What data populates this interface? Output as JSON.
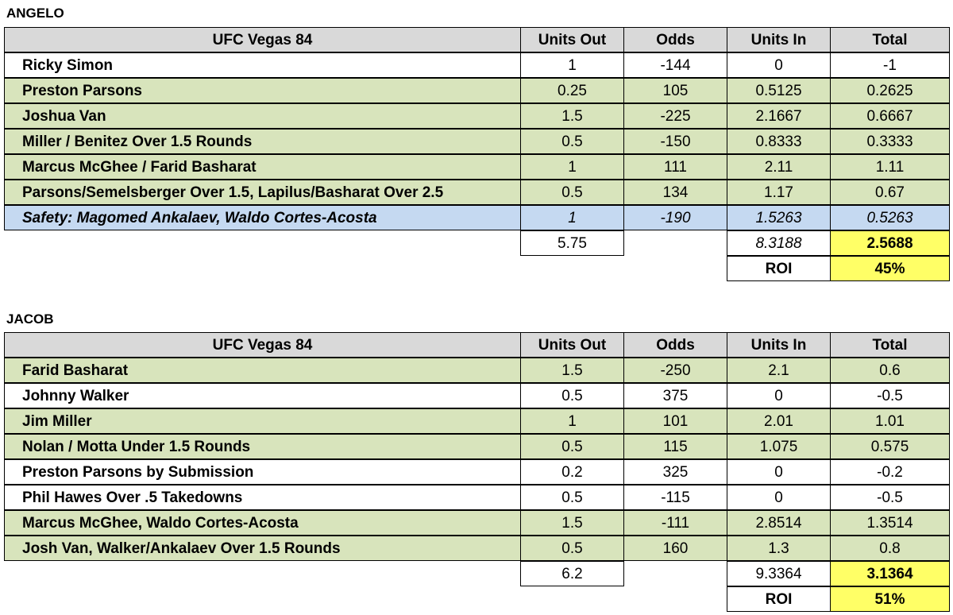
{
  "tables": [
    {
      "name": "ANGELO",
      "headers": [
        "UFC Vegas 84",
        "Units Out",
        "Odds",
        "Units In",
        "Total"
      ],
      "rows": [
        {
          "bet": "Ricky Simon",
          "units_out": "1",
          "odds": "-144",
          "units_in": "0",
          "total": "-1",
          "shade": "white"
        },
        {
          "bet": "Preston Parsons",
          "units_out": "0.25",
          "odds": "105",
          "units_in": "0.5125",
          "total": "0.2625",
          "shade": "green"
        },
        {
          "bet": "Joshua Van",
          "units_out": "1.5",
          "odds": "-225",
          "units_in": "2.1667",
          "total": "0.6667",
          "shade": "green"
        },
        {
          "bet": "Miller / Benitez Over 1.5 Rounds",
          "units_out": "0.5",
          "odds": "-150",
          "units_in": "0.8333",
          "total": "0.3333",
          "shade": "green"
        },
        {
          "bet": "Marcus McGhee / Farid Basharat",
          "units_out": "1",
          "odds": "111",
          "units_in": "2.11",
          "total": "1.11",
          "shade": "green"
        },
        {
          "bet": "Parsons/Semelsberger Over 1.5, Lapilus/Basharat Over 2.5",
          "units_out": "0.5",
          "odds": "134",
          "units_in": "1.17",
          "total": "0.67",
          "shade": "green"
        },
        {
          "bet": "Safety: Magomed Ankalaev, Waldo Cortes-Acosta",
          "units_out": "1",
          "odds": "-190",
          "units_in": "1.5263",
          "total": "0.5263",
          "shade": "blue"
        }
      ],
      "sum_units_out": "5.75",
      "sum_units_in": "8.3188",
      "sum_total": "2.5688",
      "roi_label": "ROI",
      "roi_value": "45%"
    },
    {
      "name": "JACOB",
      "headers": [
        "UFC Vegas 84",
        "Units Out",
        "Odds",
        "Units In",
        "Total"
      ],
      "rows": [
        {
          "bet": "Farid Basharat",
          "units_out": "1.5",
          "odds": "-250",
          "units_in": "2.1",
          "total": "0.6",
          "shade": "green"
        },
        {
          "bet": "Johnny Walker",
          "units_out": "0.5",
          "odds": "375",
          "units_in": "0",
          "total": "-0.5",
          "shade": "white"
        },
        {
          "bet": "Jim Miller",
          "units_out": "1",
          "odds": "101",
          "units_in": "2.01",
          "total": "1.01",
          "shade": "green"
        },
        {
          "bet": "Nolan / Motta Under 1.5 Rounds",
          "units_out": "0.5",
          "odds": "115",
          "units_in": "1.075",
          "total": "0.575",
          "shade": "green"
        },
        {
          "bet": "Preston Parsons by Submission",
          "units_out": "0.2",
          "odds": "325",
          "units_in": "0",
          "total": "-0.2",
          "shade": "white"
        },
        {
          "bet": "Phil Hawes Over .5 Takedowns",
          "units_out": "0.5",
          "odds": "-115",
          "units_in": "0",
          "total": "-0.5",
          "shade": "white"
        },
        {
          "bet": "Marcus McGhee, Waldo Cortes-Acosta",
          "units_out": "1.5",
          "odds": "-111",
          "units_in": "2.8514",
          "total": "1.3514",
          "shade": "green"
        },
        {
          "bet": "Josh Van, Walker/Ankalaev Over 1.5 Rounds",
          "units_out": "0.5",
          "odds": "160",
          "units_in": "1.3",
          "total": "0.8",
          "shade": "green"
        }
      ],
      "sum_units_out": "6.2",
      "sum_units_in": "9.3364",
      "sum_total": "3.1364",
      "roi_label": "ROI",
      "roi_value": "51%"
    }
  ],
  "colors": {
    "header": "#d9d9d9",
    "win": "#d8e4bc",
    "loss": "#ffffff",
    "safety": "#c5d9f1",
    "highlight": "#ffff66"
  }
}
